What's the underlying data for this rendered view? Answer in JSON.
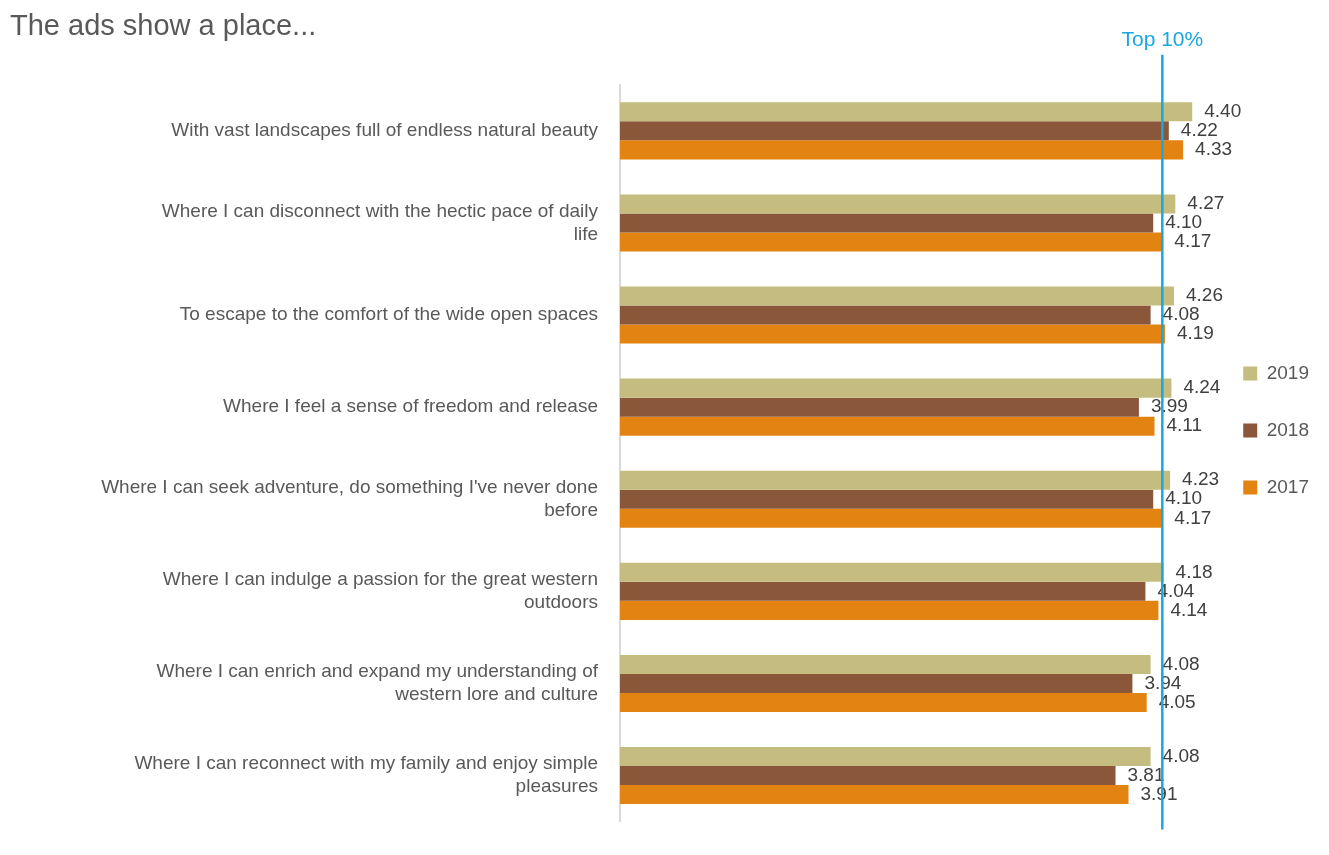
{
  "chart_data": {
    "type": "bar",
    "orientation": "horizontal",
    "title": "The ads show a place...",
    "categories": [
      "With vast landscapes full of endless natural beauty",
      "Where I can disconnect with the hectic pace of daily life",
      "To escape to the comfort of the wide open spaces",
      "Where I feel a sense of freedom and release",
      "Where I can seek adventure, do something I've never done before",
      "Where I can indulge a passion for the great western outdoors",
      "Where I can enrich and expand my understanding of western lore and culture",
      "Where I can reconnect with my family and enjoy simple pleasures"
    ],
    "series": [
      {
        "name": "2019",
        "color": "#c4bd7f",
        "values": [
          4.4,
          4.27,
          4.26,
          4.24,
          4.23,
          4.18,
          4.08,
          4.08
        ],
        "value_labels": [
          "4.40",
          "4.27",
          "4.26",
          "4.24",
          "4.23",
          "4.18",
          "4.08",
          "4.08"
        ]
      },
      {
        "name": "2018",
        "color": "#8b573a",
        "values": [
          4.22,
          4.1,
          4.08,
          3.99,
          4.1,
          4.04,
          3.94,
          3.81
        ],
        "value_labels": [
          "4.22",
          "4.10",
          "4.08",
          "3.99",
          "4.10",
          "4.04",
          "3.94",
          "3.81"
        ]
      },
      {
        "name": "2017",
        "color": "#e38311",
        "values": [
          4.33,
          4.17,
          4.19,
          4.11,
          4.17,
          4.14,
          4.05,
          3.91
        ],
        "value_labels": [
          "4.33",
          "4.17",
          "4.19",
          "4.11",
          "4.17",
          "4.14",
          "4.05",
          "3.91"
        ]
      }
    ],
    "ref_lines": [
      {
        "axis": "x",
        "value": 4.17,
        "label": "Top 10%",
        "color": "#1aa7e0"
      }
    ],
    "tick_labels": "y",
    "grid": false,
    "legend": "right"
  }
}
